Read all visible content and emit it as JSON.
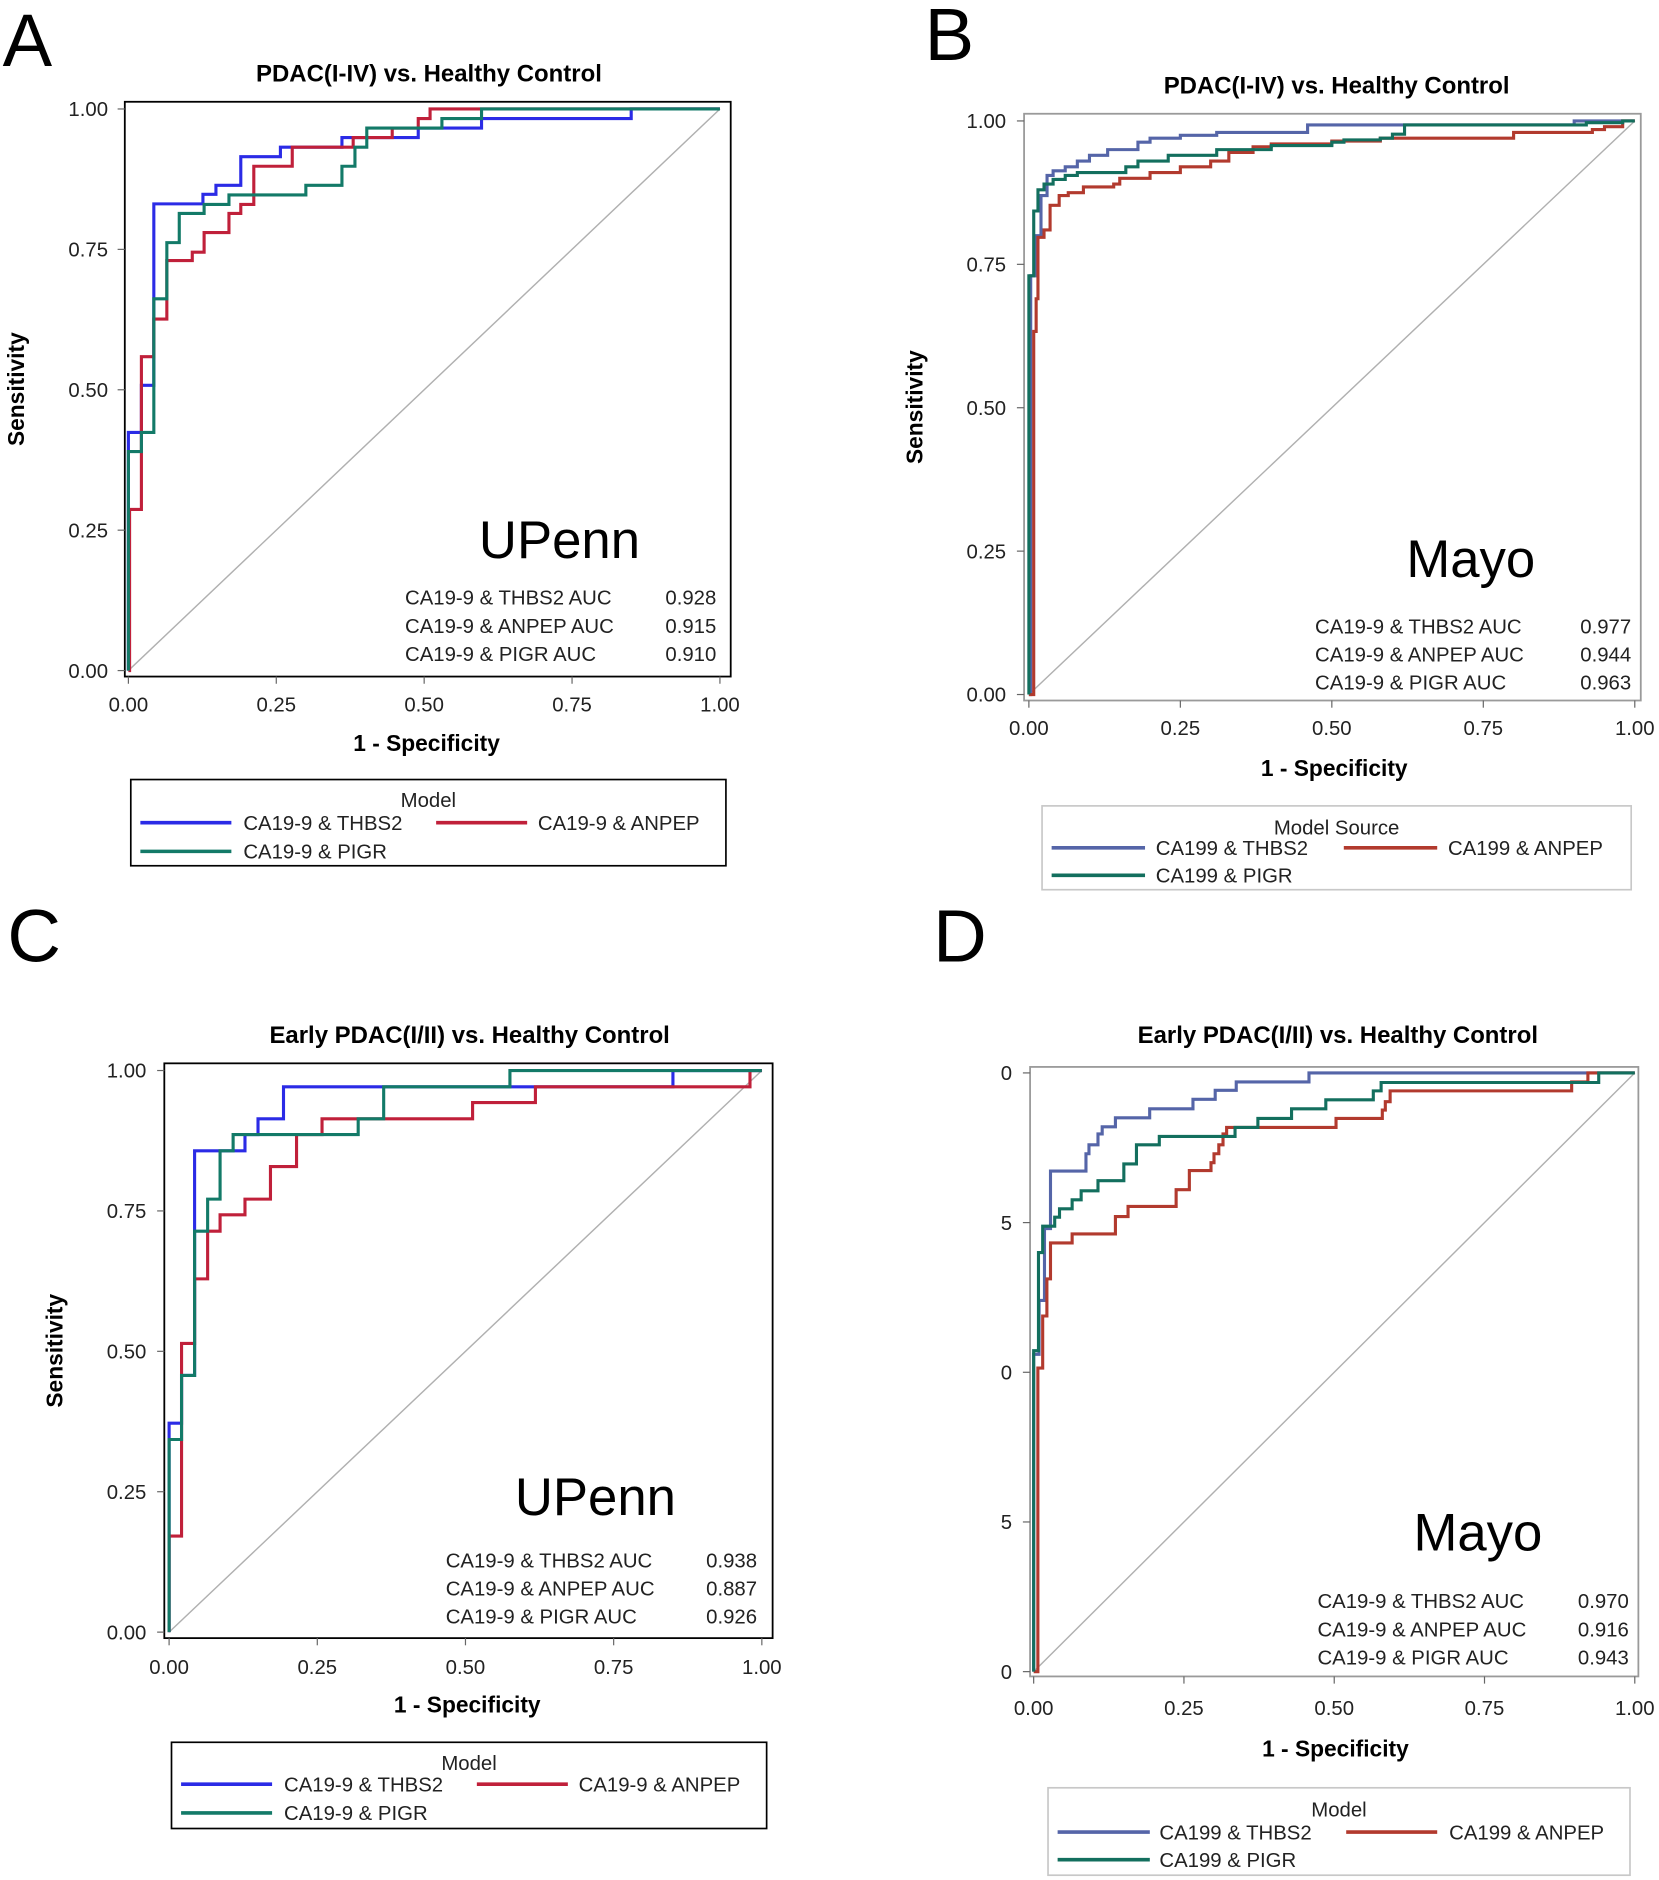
{
  "chart_data": [
    {
      "panel_letter": "A",
      "type": "line",
      "title": "PDAC(I-IV) vs. Healthy Control",
      "xlabel": "1 - Specificity",
      "ylabel": "Sensitivity",
      "xlim": [
        0,
        1
      ],
      "ylim": [
        0,
        1
      ],
      "x_ticks": [
        "0.00",
        "0.25",
        "0.50",
        "0.75",
        "1.00"
      ],
      "y_ticks": [
        "0.00",
        "0.25",
        "0.50",
        "0.75",
        "1.00"
      ],
      "site_label": "UPenn",
      "auc_table": [
        {
          "label": "CA19-9 & THBS2 AUC",
          "value": "0.928"
        },
        {
          "label": "CA19-9 & ANPEP AUC",
          "value": "0.915"
        },
        {
          "label": "CA19-9 & PIGR AUC",
          "value": "0.910"
        }
      ],
      "legend": {
        "title": "Model",
        "placement": "bottom"
      },
      "frame_color": "#000000",
      "series": [
        {
          "name": "CA19-9 & THBS2",
          "color": "#2b2be6",
          "steps": [
            [
              0,
              0.424
            ],
            [
              0.022,
              0.508
            ],
            [
              0.043,
              0.831
            ],
            [
              0.126,
              0.848
            ],
            [
              0.148,
              0.864
            ],
            [
              0.19,
              0.915
            ],
            [
              0.257,
              0.932
            ],
            [
              0.361,
              0.949
            ],
            [
              0.49,
              0.966
            ],
            [
              0.597,
              0.983
            ],
            [
              0.85,
              1.0
            ],
            [
              1,
              1
            ]
          ]
        },
        {
          "name": "CA19-9 & ANPEP",
          "color": "#c0203a",
          "steps": [
            [
              0.002,
              0.287
            ],
            [
              0.022,
              0.559
            ],
            [
              0.043,
              0.626
            ],
            [
              0.065,
              0.73
            ],
            [
              0.108,
              0.745
            ],
            [
              0.128,
              0.78
            ],
            [
              0.17,
              0.814
            ],
            [
              0.19,
              0.83
            ],
            [
              0.212,
              0.898
            ],
            [
              0.277,
              0.932
            ],
            [
              0.38,
              0.949
            ],
            [
              0.446,
              0.966
            ],
            [
              0.49,
              0.983
            ],
            [
              0.51,
              1.0
            ],
            [
              1,
              1
            ]
          ]
        },
        {
          "name": "CA19-9 & PIGR",
          "color": "#137a68",
          "steps": [
            [
              0,
              0.39
            ],
            [
              0.022,
              0.424
            ],
            [
              0.043,
              0.662
            ],
            [
              0.065,
              0.762
            ],
            [
              0.086,
              0.814
            ],
            [
              0.128,
              0.83
            ],
            [
              0.17,
              0.847
            ],
            [
              0.3,
              0.864
            ],
            [
              0.361,
              0.898
            ],
            [
              0.383,
              0.932
            ],
            [
              0.403,
              0.966
            ],
            [
              0.53,
              0.983
            ],
            [
              0.597,
              1.0
            ],
            [
              1,
              1
            ]
          ]
        }
      ]
    },
    {
      "panel_letter": "B",
      "type": "line",
      "title": "PDAC(I-IV) vs. Healthy Control",
      "xlabel": "1 - Specificity",
      "ylabel": "Sensitivity",
      "xlim": [
        0,
        1
      ],
      "ylim": [
        0,
        1
      ],
      "x_ticks": [
        "0.00",
        "0.25",
        "0.50",
        "0.75",
        "1.00"
      ],
      "y_ticks": [
        "0.00",
        "0.25",
        "0.50",
        "0.75",
        "1.00"
      ],
      "site_label": "Mayo",
      "auc_table": [
        {
          "label": "CA19-9 & THBS2 AUC",
          "value": "0.977"
        },
        {
          "label": "CA19-9 & ANPEP AUC",
          "value": "0.944"
        },
        {
          "label": "CA19-9 & PIGR AUC",
          "value": "0.963"
        }
      ],
      "legend": {
        "title": "Model Source",
        "placement": "bottom"
      },
      "frame_color": "#9a9a9a",
      "series": [
        {
          "name": "CA199 & THBS2",
          "color": "#5565a8",
          "steps": [
            [
              0.003,
              0.73
            ],
            [
              0.01,
              0.8
            ],
            [
              0.02,
              0.87
            ],
            [
              0.03,
              0.905
            ],
            [
              0.04,
              0.913
            ],
            [
              0.06,
              0.92
            ],
            [
              0.08,
              0.93
            ],
            [
              0.1,
              0.94
            ],
            [
              0.13,
              0.95
            ],
            [
              0.18,
              0.963
            ],
            [
              0.2,
              0.97
            ],
            [
              0.25,
              0.975
            ],
            [
              0.31,
              0.98
            ],
            [
              0.46,
              0.993
            ],
            [
              0.9,
              1.0
            ],
            [
              1,
              1
            ]
          ]
        },
        {
          "name": "CA199 & ANPEP",
          "color": "#b23a2e",
          "steps": [
            [
              0.008,
              0.633
            ],
            [
              0.012,
              0.69
            ],
            [
              0.015,
              0.797
            ],
            [
              0.025,
              0.81
            ],
            [
              0.035,
              0.853
            ],
            [
              0.05,
              0.87
            ],
            [
              0.065,
              0.875
            ],
            [
              0.09,
              0.885
            ],
            [
              0.14,
              0.89
            ],
            [
              0.15,
              0.9
            ],
            [
              0.2,
              0.91
            ],
            [
              0.25,
              0.92
            ],
            [
              0.3,
              0.93
            ],
            [
              0.33,
              0.945
            ],
            [
              0.37,
              0.955
            ],
            [
              0.4,
              0.96
            ],
            [
              0.5,
              0.965
            ],
            [
              0.58,
              0.97
            ],
            [
              0.8,
              0.98
            ],
            [
              0.93,
              0.985
            ],
            [
              0.95,
              0.99
            ],
            [
              0.98,
              1.0
            ],
            [
              1,
              1
            ]
          ]
        },
        {
          "name": "CA199 & PIGR",
          "color": "#136f5e",
          "steps": [
            [
              0,
              0.73
            ],
            [
              0.008,
              0.843
            ],
            [
              0.015,
              0.88
            ],
            [
              0.025,
              0.89
            ],
            [
              0.04,
              0.898
            ],
            [
              0.06,
              0.905
            ],
            [
              0.08,
              0.91
            ],
            [
              0.16,
              0.92
            ],
            [
              0.18,
              0.93
            ],
            [
              0.23,
              0.94
            ],
            [
              0.31,
              0.95
            ],
            [
              0.4,
              0.957
            ],
            [
              0.5,
              0.963
            ],
            [
              0.52,
              0.967
            ],
            [
              0.58,
              0.97
            ],
            [
              0.6,
              0.977
            ],
            [
              0.62,
              0.993
            ],
            [
              0.92,
              0.997
            ],
            [
              0.98,
              1.0
            ],
            [
              1,
              1
            ]
          ]
        }
      ]
    },
    {
      "panel_letter": "C",
      "type": "line",
      "title": "Early PDAC(I/II) vs. Healthy Control",
      "xlabel": "1 - Specificity",
      "ylabel": "Sensitivity",
      "xlim": [
        0,
        1
      ],
      "ylim": [
        0,
        1
      ],
      "x_ticks": [
        "0.00",
        "0.25",
        "0.50",
        "0.75",
        "1.00"
      ],
      "y_ticks": [
        "0.00",
        "0.25",
        "0.50",
        "0.75",
        "1.00"
      ],
      "site_label": "UPenn",
      "auc_table": [
        {
          "label": "CA19-9 & THBS2 AUC",
          "value": "0.938"
        },
        {
          "label": "CA19-9 & ANPEP AUC",
          "value": "0.887"
        },
        {
          "label": "CA19-9 & PIGR AUC",
          "value": "0.926"
        }
      ],
      "legend": {
        "title": "Model",
        "placement": "bottom"
      },
      "frame_color": "#000000",
      "series": [
        {
          "name": "CA19-9 & THBS2",
          "color": "#2b2be6",
          "steps": [
            [
              0,
              0.372
            ],
            [
              0.021,
              0.457
            ],
            [
              0.043,
              0.857
            ],
            [
              0.128,
              0.886
            ],
            [
              0.15,
              0.914
            ],
            [
              0.193,
              0.971
            ],
            [
              0.85,
              1.0
            ],
            [
              1,
              1
            ]
          ]
        },
        {
          "name": "CA19-9 & ANPEP",
          "color": "#c0203a",
          "steps": [
            [
              0,
              0.171
            ],
            [
              0.021,
              0.514
            ],
            [
              0.043,
              0.629
            ],
            [
              0.065,
              0.714
            ],
            [
              0.086,
              0.743
            ],
            [
              0.128,
              0.771
            ],
            [
              0.171,
              0.829
            ],
            [
              0.215,
              0.886
            ],
            [
              0.258,
              0.914
            ],
            [
              0.512,
              0.943
            ],
            [
              0.618,
              0.971
            ],
            [
              0.98,
              1.0
            ],
            [
              1,
              1
            ]
          ]
        },
        {
          "name": "CA19-9 & PIGR",
          "color": "#137a68",
          "steps": [
            [
              0,
              0.343
            ],
            [
              0.021,
              0.457
            ],
            [
              0.043,
              0.714
            ],
            [
              0.065,
              0.771
            ],
            [
              0.086,
              0.857
            ],
            [
              0.108,
              0.886
            ],
            [
              0.319,
              0.914
            ],
            [
              0.362,
              0.971
            ],
            [
              0.575,
              1.0
            ],
            [
              1,
              1
            ]
          ]
        }
      ]
    },
    {
      "panel_letter": "D",
      "type": "line",
      "title": "Early PDAC(I/II) vs. Healthy Control",
      "xlabel": "1 - Specificity",
      "ylabel": "",
      "xlim": [
        0,
        1
      ],
      "ylim": [
        0,
        1
      ],
      "x_ticks": [
        "0.00",
        "0.25",
        "0.50",
        "0.75",
        "1.00"
      ],
      "y_ticks": [
        "0",
        "5",
        "0",
        "5",
        "0"
      ],
      "site_label": "Mayo",
      "auc_table": [
        {
          "label": "CA19-9 & THBS2 AUC",
          "value": "0.970"
        },
        {
          "label": "CA19-9 & ANPEP AUC",
          "value": "0.916"
        },
        {
          "label": "CA19-9 & PIGR AUC",
          "value": "0.943"
        }
      ],
      "legend": {
        "title": "Model",
        "placement": "bottom"
      },
      "frame_color": "#9a9a9a",
      "series": [
        {
          "name": "CA199 & THBS2",
          "color": "#5565a8",
          "steps": [
            [
              0,
              0.53
            ],
            [
              0.009,
              0.62
            ],
            [
              0.018,
              0.74
            ],
            [
              0.028,
              0.836
            ],
            [
              0.087,
              0.865
            ],
            [
              0.092,
              0.88
            ],
            [
              0.107,
              0.898
            ],
            [
              0.114,
              0.91
            ],
            [
              0.136,
              0.925
            ],
            [
              0.193,
              0.94
            ],
            [
              0.265,
              0.956
            ],
            [
              0.302,
              0.971
            ],
            [
              0.337,
              0.985
            ],
            [
              0.458,
              1.0
            ],
            [
              1,
              1
            ]
          ]
        },
        {
          "name": "CA199 & ANPEP",
          "color": "#b23a2e",
          "steps": [
            [
              0.007,
              0.507
            ],
            [
              0.015,
              0.594
            ],
            [
              0.022,
              0.656
            ],
            [
              0.028,
              0.716
            ],
            [
              0.064,
              0.731
            ],
            [
              0.136,
              0.76
            ],
            [
              0.157,
              0.777
            ],
            [
              0.237,
              0.805
            ],
            [
              0.259,
              0.837
            ],
            [
              0.295,
              0.85
            ],
            [
              0.3,
              0.865
            ],
            [
              0.308,
              0.88
            ],
            [
              0.315,
              0.898
            ],
            [
              0.321,
              0.909
            ],
            [
              0.503,
              0.924
            ],
            [
              0.58,
              0.938
            ],
            [
              0.585,
              0.952
            ],
            [
              0.593,
              0.97
            ],
            [
              0.895,
              0.985
            ],
            [
              0.922,
              1.0
            ],
            [
              1,
              1
            ]
          ]
        },
        {
          "name": "CA199 & PIGR",
          "color": "#136f5e",
          "steps": [
            [
              0,
              0.536
            ],
            [
              0.008,
              0.7
            ],
            [
              0.015,
              0.744
            ],
            [
              0.035,
              0.759
            ],
            [
              0.043,
              0.773
            ],
            [
              0.064,
              0.788
            ],
            [
              0.079,
              0.803
            ],
            [
              0.107,
              0.82
            ],
            [
              0.15,
              0.848
            ],
            [
              0.171,
              0.88
            ],
            [
              0.209,
              0.894
            ],
            [
              0.335,
              0.909
            ],
            [
              0.373,
              0.924
            ],
            [
              0.429,
              0.94
            ],
            [
              0.486,
              0.955
            ],
            [
              0.565,
              0.97
            ],
            [
              0.578,
              0.984
            ],
            [
              0.94,
              1.0
            ],
            [
              1,
              1
            ]
          ]
        }
      ]
    }
  ]
}
